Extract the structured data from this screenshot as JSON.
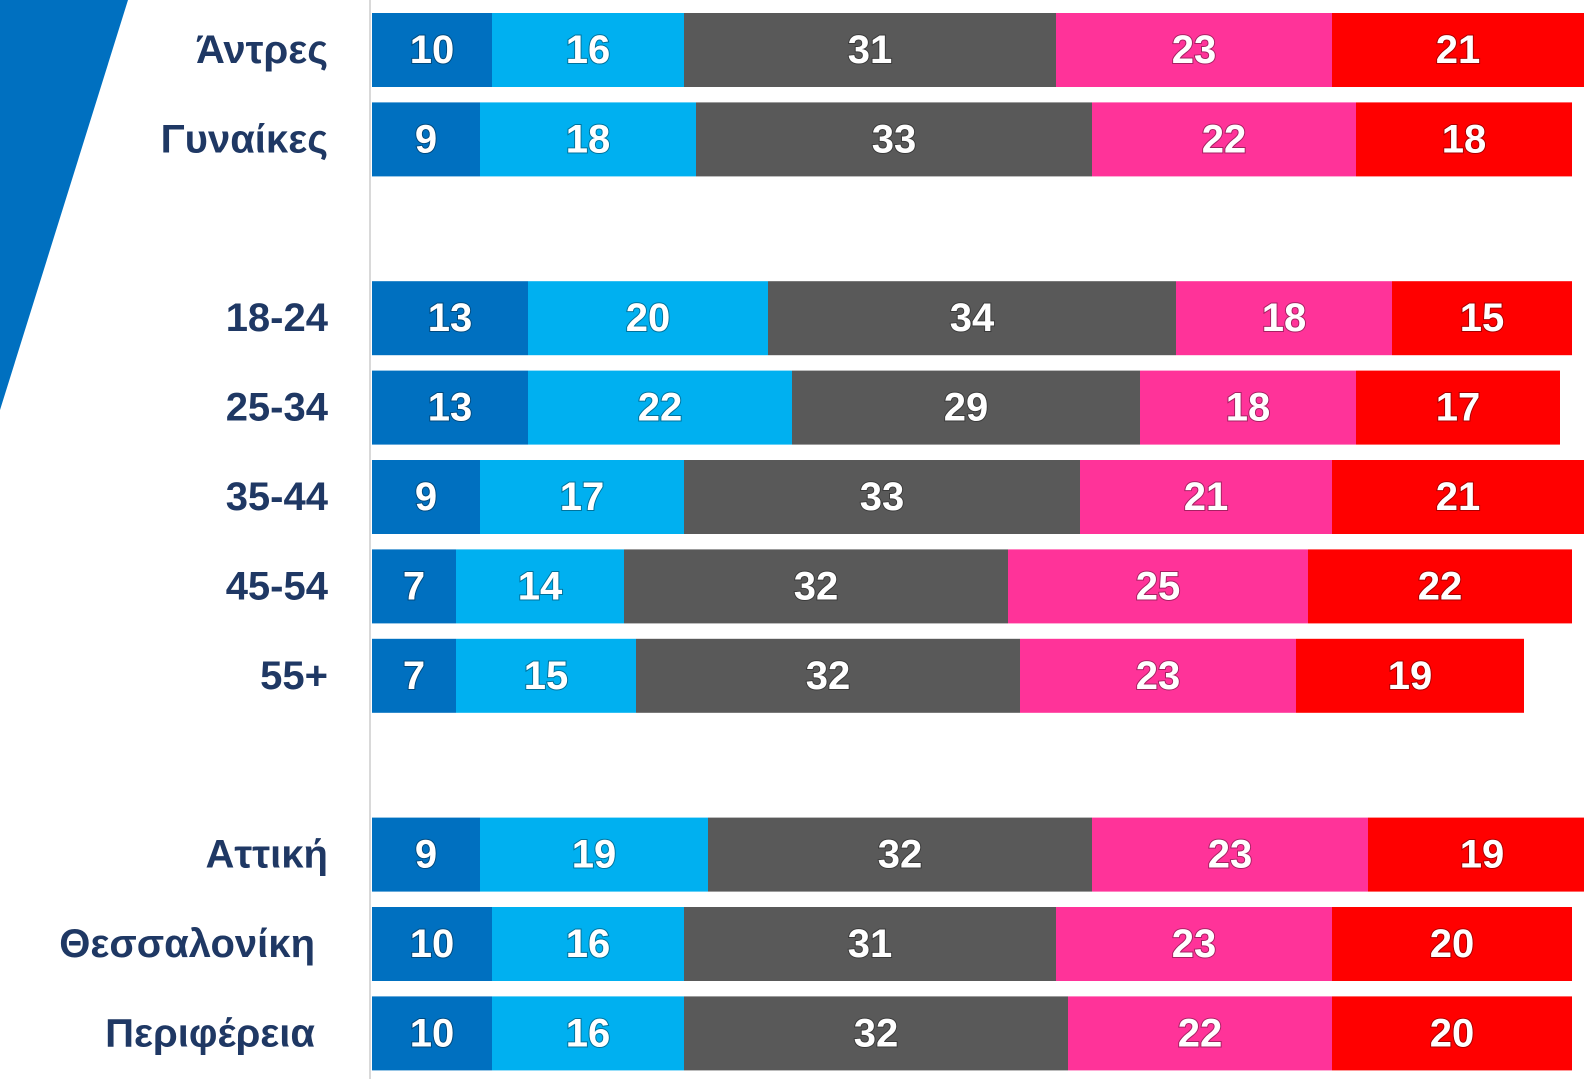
{
  "chart_data": {
    "type": "stacked_bar_horizontal",
    "categories": [
      "Άντρες",
      "Γυναίκες",
      null,
      "18-24",
      "25-34",
      "35-44",
      "45-54",
      "55+",
      null,
      "Αττική",
      "Θεσσαλονίκη",
      "Περιφέρεια"
    ],
    "series": [
      {
        "color": "#0070c0",
        "values": [
          10,
          9,
          null,
          13,
          13,
          9,
          7,
          7,
          null,
          9,
          10,
          10
        ]
      },
      {
        "color": "#00b0f0",
        "values": [
          16,
          18,
          null,
          20,
          22,
          17,
          14,
          15,
          null,
          19,
          16,
          16
        ]
      },
      {
        "color": "#595959",
        "values": [
          31,
          33,
          null,
          34,
          29,
          33,
          32,
          32,
          null,
          32,
          31,
          32
        ]
      },
      {
        "color": "#ff3399",
        "values": [
          23,
          22,
          null,
          18,
          18,
          21,
          25,
          23,
          null,
          23,
          23,
          22
        ]
      },
      {
        "color": "#ff0000",
        "values": [
          21,
          18,
          null,
          15,
          17,
          21,
          22,
          19,
          null,
          19,
          20,
          20
        ]
      }
    ],
    "xlim": [
      0,
      100
    ]
  }
}
